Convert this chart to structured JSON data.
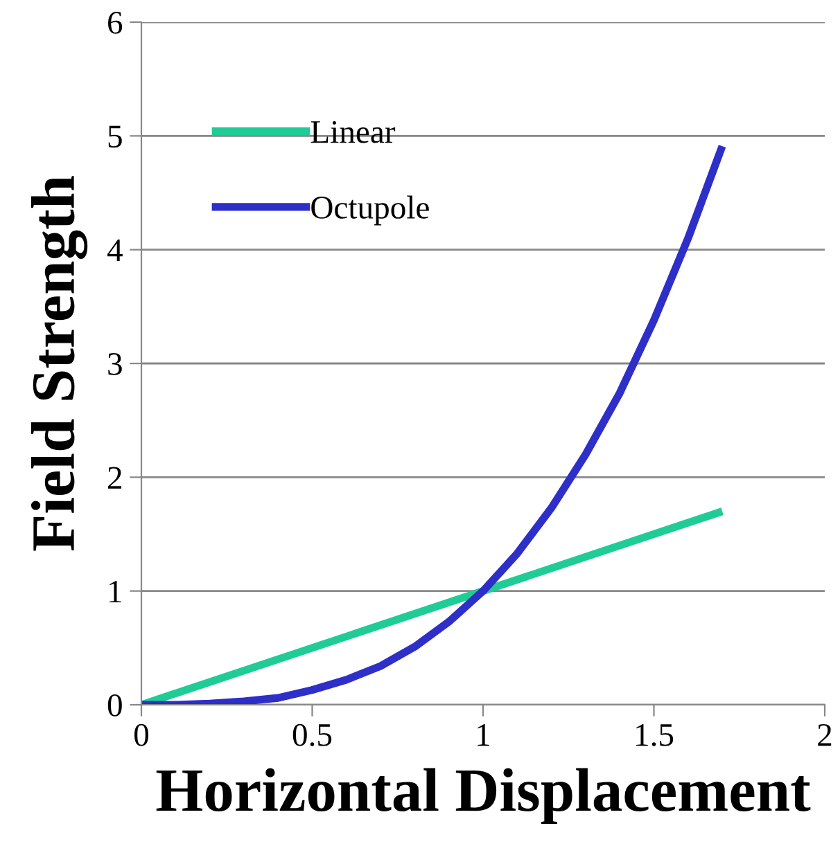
{
  "chart_data": {
    "type": "line",
    "xlabel": "Horizontal Displacement",
    "ylabel": "Field Strength",
    "xlim": [
      0,
      2
    ],
    "xticks": [
      0,
      0.5,
      1,
      1.5,
      2
    ],
    "ylim": [
      0,
      6
    ],
    "yticks": [
      0,
      1,
      2,
      3,
      4,
      5,
      6
    ],
    "grid": "y",
    "legend": "top left",
    "marker": "none",
    "line_style": "solid",
    "series": [
      {
        "name": "Linear",
        "color": "#1fcc96",
        "x": [
          0,
          1.7
        ],
        "values": [
          0,
          1.7
        ]
      },
      {
        "name": "Octupole",
        "color": "#2e2ec8",
        "x": [
          0,
          0.1,
          0.2,
          0.3,
          0.4,
          0.5,
          0.6,
          0.7,
          0.8,
          0.9,
          1,
          1.1,
          1.2,
          1.3,
          1.4,
          1.5,
          1.6,
          1.7
        ],
        "values": [
          0,
          0,
          0.01,
          0.03,
          0.06,
          0.13,
          0.22,
          0.34,
          0.51,
          0.73,
          1,
          1.33,
          1.73,
          2.2,
          2.74,
          3.38,
          4.1,
          4.91
        ]
      }
    ]
  }
}
